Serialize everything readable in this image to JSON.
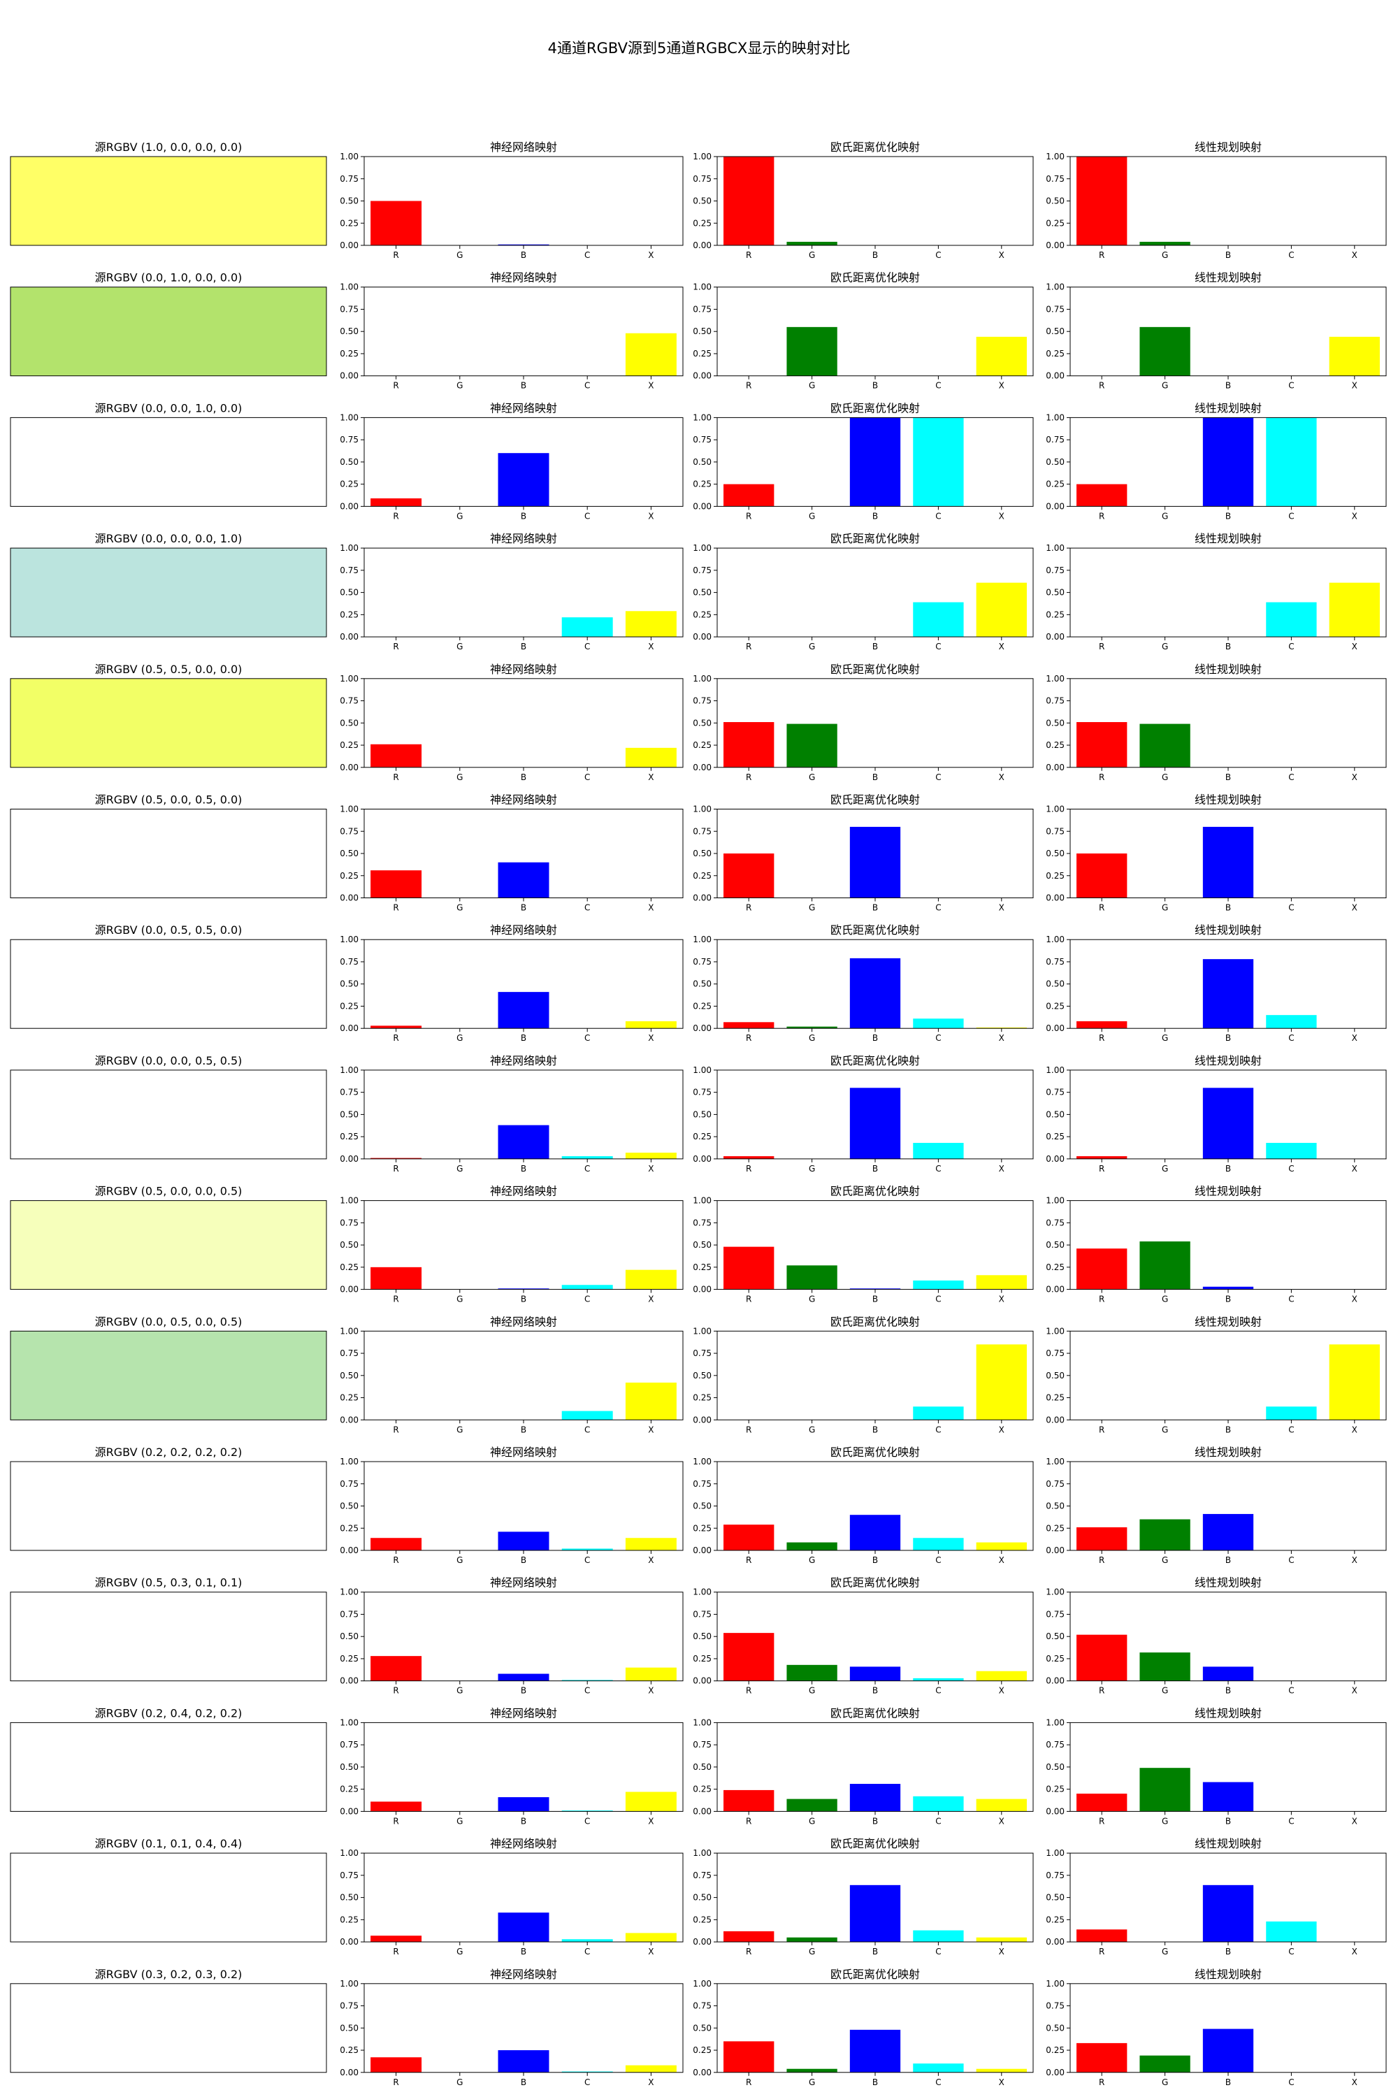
{
  "figure": {
    "title": "4通道RGBV源到5通道RGBCX显示的映射对比"
  },
  "panel_titles": [
    "神经网络映射",
    "欧氏距离优化映射",
    "线性规划映射"
  ],
  "chart_data": {
    "type": "bar",
    "categories": [
      "R",
      "G",
      "B",
      "C",
      "X"
    ],
    "bar_colors": [
      "#ff0000",
      "#008000",
      "#0000ff",
      "#00ffff",
      "#ffff00"
    ],
    "ylim": [
      0,
      1
    ],
    "yticks": [
      "0.00",
      "0.25",
      "0.50",
      "0.75",
      "1.00"
    ],
    "grid": false,
    "rows": [
      {
        "title": "源RGBV (1.0, 0.0, 0.0, 0.0)",
        "swatch": "#ffff66",
        "nn": [
          0.5,
          0,
          0.01,
          0,
          0
        ],
        "euclid": [
          1.0,
          0.04,
          0,
          0,
          0
        ],
        "lp": [
          1.0,
          0.04,
          0,
          0,
          0
        ]
      },
      {
        "title": "源RGBV (0.0, 1.0, 0.0, 0.0)",
        "swatch": "#b3e36c",
        "nn": [
          0,
          0,
          0,
          0,
          0.48
        ],
        "euclid": [
          0,
          0.55,
          0,
          0,
          0.44
        ],
        "lp": [
          0,
          0.55,
          0,
          0,
          0.44
        ]
      },
      {
        "title": "源RGBV (0.0, 0.0, 1.0, 0.0)",
        "swatch": "#ffffff",
        "nn": [
          0.09,
          0,
          0.6,
          0,
          0
        ],
        "euclid": [
          0.25,
          0,
          1.0,
          1.0,
          0
        ],
        "lp": [
          0.25,
          0,
          1.0,
          1.0,
          0
        ]
      },
      {
        "title": "源RGBV (0.0, 0.0, 0.0, 1.0)",
        "swatch": "#bbe4de",
        "nn": [
          0,
          0,
          0,
          0.22,
          0.29
        ],
        "euclid": [
          0,
          0,
          0,
          0.39,
          0.61
        ],
        "lp": [
          0,
          0,
          0,
          0.39,
          0.61
        ]
      },
      {
        "title": "源RGBV (0.5, 0.5, 0.0, 0.0)",
        "swatch": "#f2ff66",
        "nn": [
          0.26,
          0,
          0,
          0,
          0.22
        ],
        "euclid": [
          0.51,
          0.49,
          0,
          0,
          0
        ],
        "lp": [
          0.51,
          0.49,
          0,
          0,
          0
        ]
      },
      {
        "title": "源RGBV (0.5, 0.0, 0.5, 0.0)",
        "swatch": "#ffffff",
        "nn": [
          0.31,
          0,
          0.4,
          0,
          0
        ],
        "euclid": [
          0.5,
          0,
          0.8,
          0,
          0
        ],
        "lp": [
          0.5,
          0,
          0.8,
          0,
          0
        ]
      },
      {
        "title": "源RGBV (0.0, 0.5, 0.5, 0.0)",
        "swatch": "#ffffff",
        "nn": [
          0.03,
          0,
          0.41,
          0,
          0.08
        ],
        "euclid": [
          0.07,
          0.02,
          0.79,
          0.11,
          0.01
        ],
        "lp": [
          0.08,
          0,
          0.78,
          0.15,
          0
        ]
      },
      {
        "title": "源RGBV (0.0, 0.0, 0.5, 0.5)",
        "swatch": "#ffffff",
        "nn": [
          0.01,
          0,
          0.38,
          0.03,
          0.07
        ],
        "euclid": [
          0.03,
          0,
          0.8,
          0.18,
          0
        ],
        "lp": [
          0.03,
          0,
          0.8,
          0.18,
          0
        ]
      },
      {
        "title": "源RGBV (0.5, 0.0, 0.0, 0.5)",
        "swatch": "#f6ffbb",
        "nn": [
          0.25,
          0,
          0.01,
          0.05,
          0.22
        ],
        "euclid": [
          0.48,
          0.27,
          0.01,
          0.1,
          0.16
        ],
        "lp": [
          0.46,
          0.54,
          0.03,
          0,
          0
        ]
      },
      {
        "title": "源RGBV (0.0, 0.5, 0.0, 0.5)",
        "swatch": "#b6e4ad",
        "nn": [
          0,
          0,
          0,
          0.1,
          0.42
        ],
        "euclid": [
          0,
          0,
          0,
          0.15,
          0.85
        ],
        "lp": [
          0,
          0,
          0,
          0.15,
          0.85
        ]
      },
      {
        "title": "源RGBV (0.2, 0.2, 0.2, 0.2)",
        "swatch": "#ffffff",
        "nn": [
          0.14,
          0,
          0.21,
          0.02,
          0.14
        ],
        "euclid": [
          0.29,
          0.09,
          0.4,
          0.14,
          0.09
        ],
        "lp": [
          0.26,
          0.35,
          0.41,
          0,
          0
        ]
      },
      {
        "title": "源RGBV (0.5, 0.3, 0.1, 0.1)",
        "swatch": "#ffffff",
        "nn": [
          0.28,
          0,
          0.08,
          0.01,
          0.15
        ],
        "euclid": [
          0.54,
          0.18,
          0.16,
          0.03,
          0.11
        ],
        "lp": [
          0.52,
          0.32,
          0.16,
          0,
          0
        ]
      },
      {
        "title": "源RGBV (0.2, 0.4, 0.2, 0.2)",
        "swatch": "#ffffff",
        "nn": [
          0.11,
          0,
          0.16,
          0.01,
          0.22
        ],
        "euclid": [
          0.24,
          0.14,
          0.31,
          0.17,
          0.14
        ],
        "lp": [
          0.2,
          0.49,
          0.33,
          0,
          0
        ]
      },
      {
        "title": "源RGBV (0.1, 0.1, 0.4, 0.4)",
        "swatch": "#ffffff",
        "nn": [
          0.07,
          0,
          0.33,
          0.03,
          0.1
        ],
        "euclid": [
          0.12,
          0.05,
          0.64,
          0.13,
          0.05
        ],
        "lp": [
          0.14,
          0,
          0.64,
          0.23,
          0
        ]
      },
      {
        "title": "源RGBV (0.3, 0.2, 0.3, 0.2)",
        "swatch": "#ffffff",
        "nn": [
          0.17,
          0,
          0.25,
          0.01,
          0.08
        ],
        "euclid": [
          0.35,
          0.04,
          0.48,
          0.1,
          0.04
        ],
        "lp": [
          0.33,
          0.19,
          0.49,
          0,
          0
        ]
      }
    ]
  }
}
